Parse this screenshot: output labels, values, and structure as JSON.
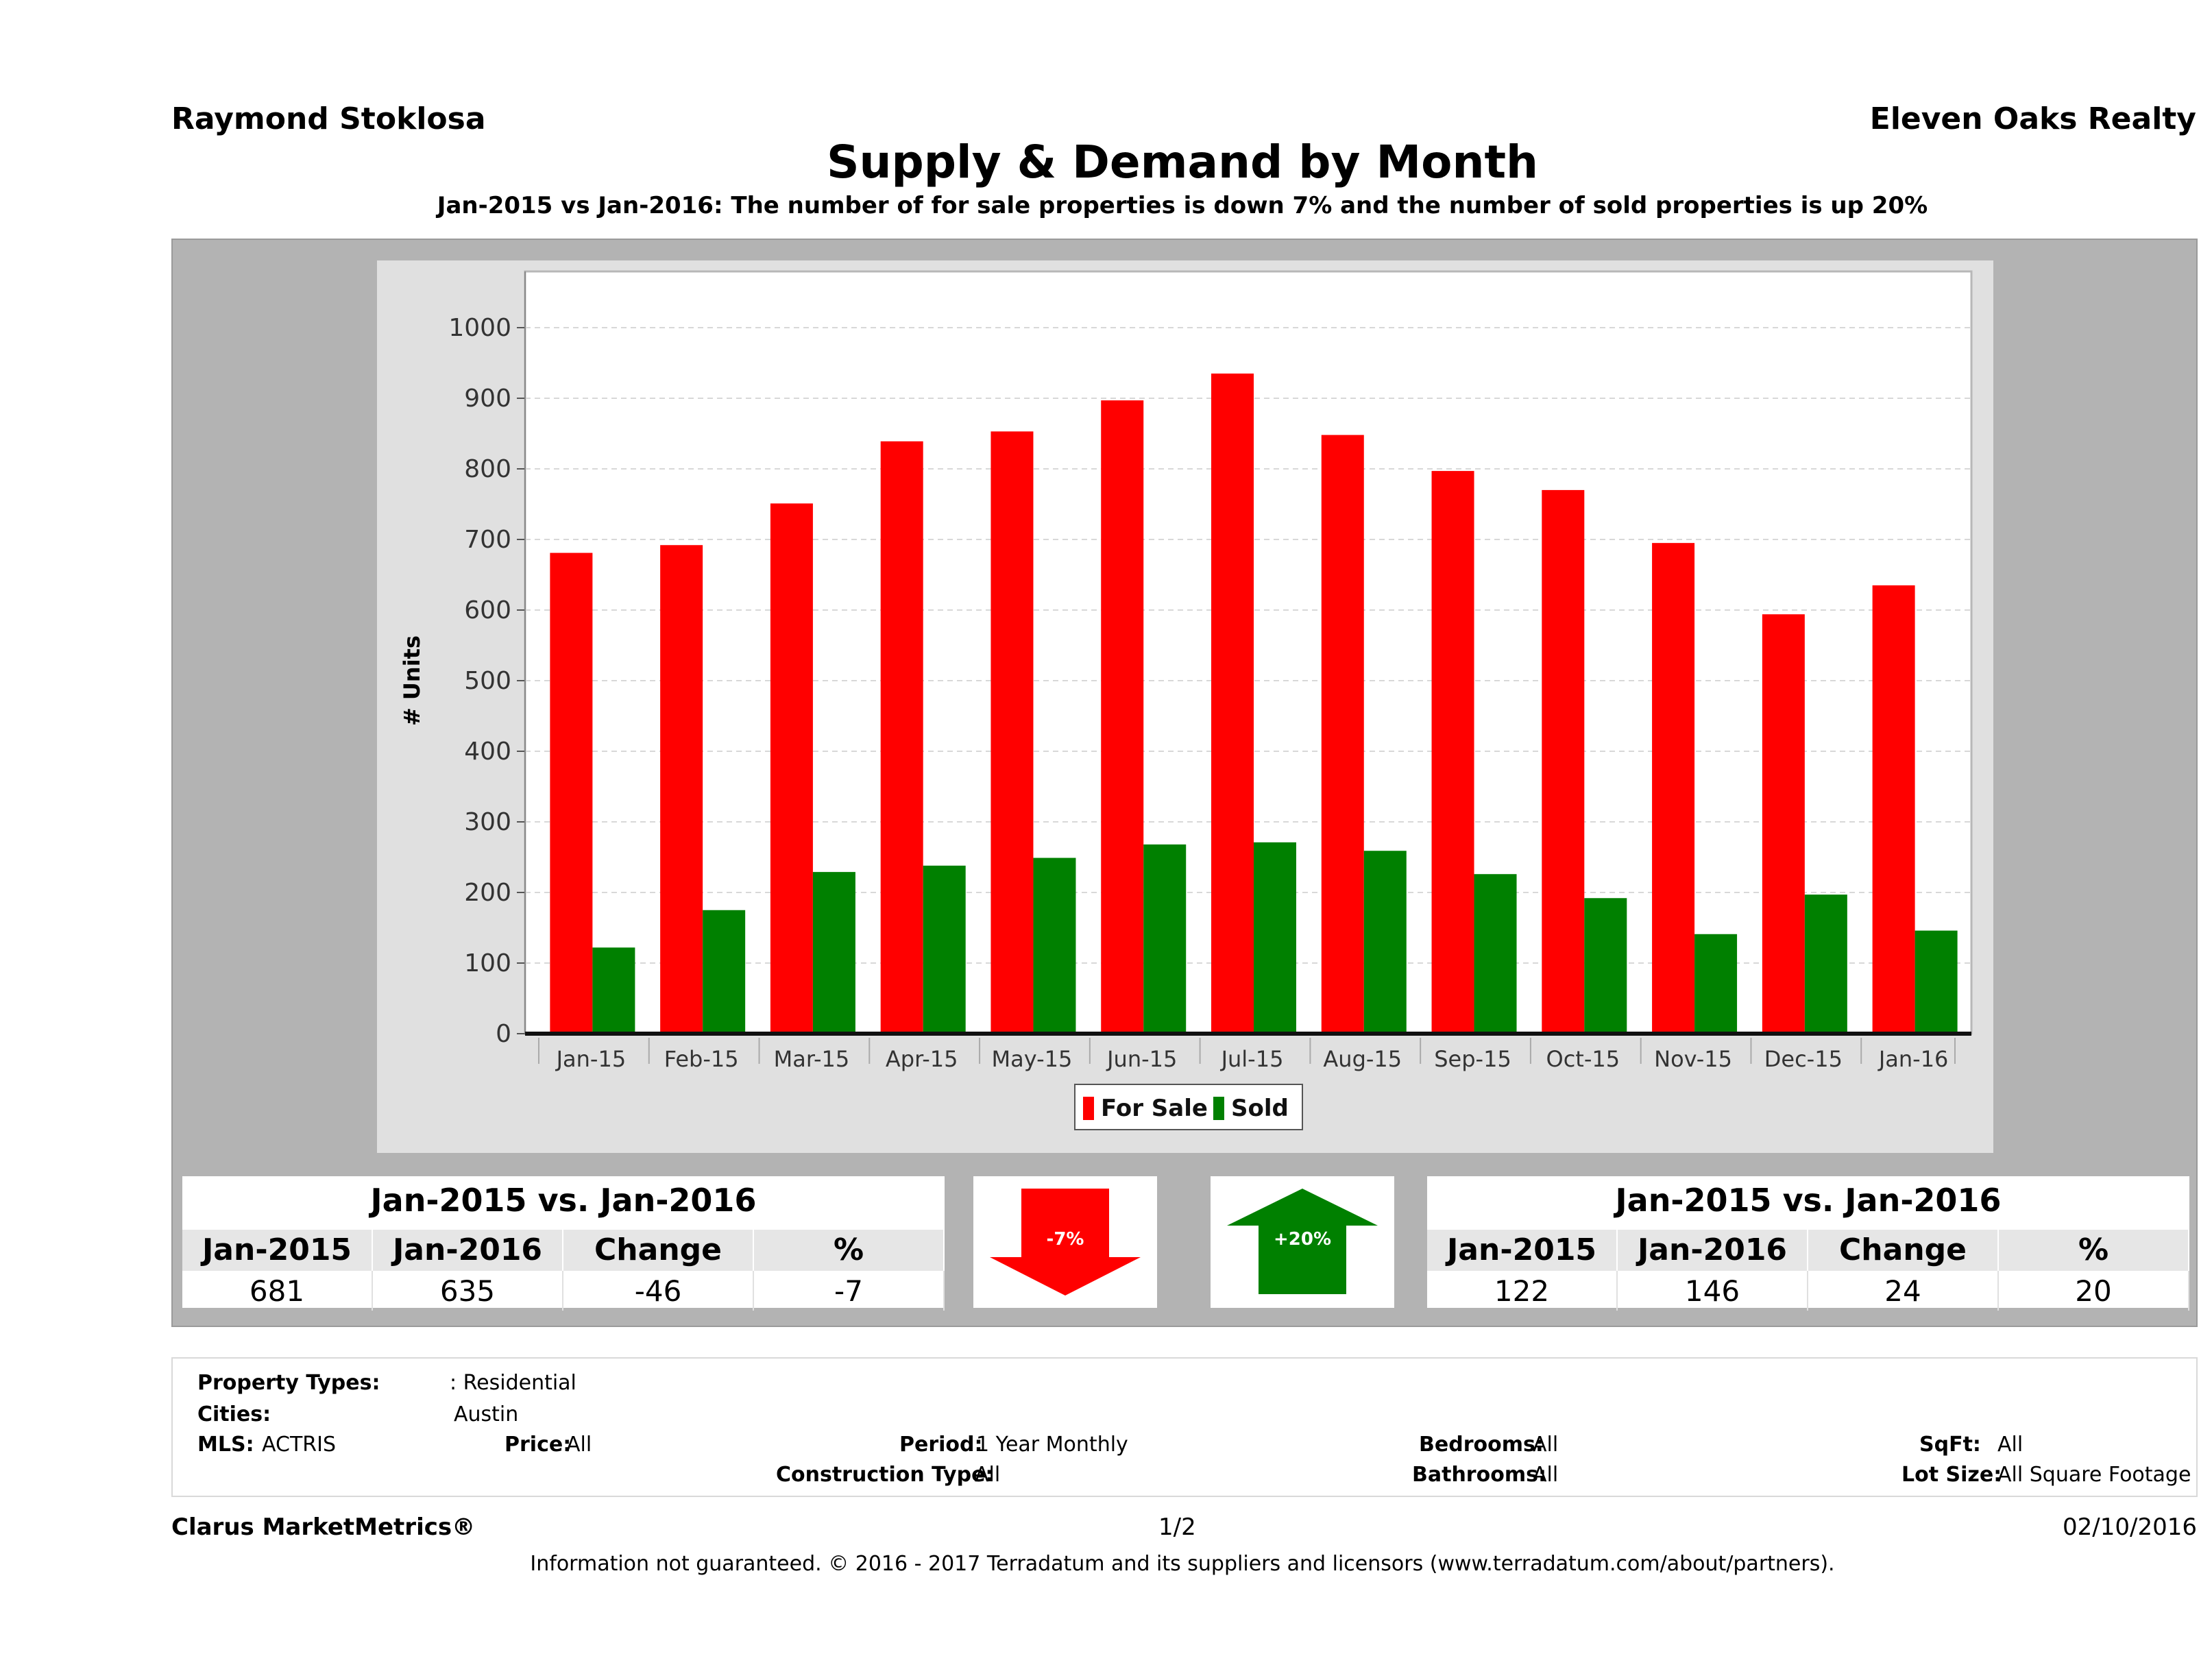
{
  "header": {
    "agent": "Raymond Stoklosa",
    "company": "Eleven Oaks Realty"
  },
  "chart_data": {
    "type": "bar",
    "title": "Supply & Demand by Month",
    "subtitle": "Jan-2015 vs Jan-2016: The number of for sale properties is down 7% and the number of sold properties is up 20%",
    "xlabel": "",
    "ylabel": "# Units",
    "ylim": [
      0,
      1000
    ],
    "yticks": [
      0,
      100,
      200,
      300,
      400,
      500,
      600,
      700,
      800,
      900,
      1000
    ],
    "grid": true,
    "legend_position": "bottom-center",
    "categories": [
      "Jan-15",
      "Feb-15",
      "Mar-15",
      "Apr-15",
      "May-15",
      "Jun-15",
      "Jul-15",
      "Aug-15",
      "Sep-15",
      "Oct-15",
      "Nov-15",
      "Dec-15",
      "Jan-16"
    ],
    "series": [
      {
        "name": "For Sale",
        "color": "#ff0000",
        "values": [
          681,
          692,
          751,
          839,
          853,
          897,
          935,
          848,
          797,
          770,
          695,
          594,
          635
        ]
      },
      {
        "name": "Sold",
        "color": "#008000",
        "values": [
          122,
          175,
          229,
          238,
          249,
          268,
          271,
          259,
          226,
          192,
          141,
          197,
          146
        ]
      }
    ]
  },
  "stats_left": {
    "title": "Jan-2015 vs. Jan-2016",
    "headers": [
      "Jan-2015",
      "Jan-2016",
      "Change",
      "%"
    ],
    "values": [
      "681",
      "635",
      "-46",
      "-7"
    ]
  },
  "stats_right": {
    "title": "Jan-2015 vs. Jan-2016",
    "headers": [
      "Jan-2015",
      "Jan-2016",
      "Change",
      "%"
    ],
    "values": [
      "122",
      "146",
      "24",
      "20"
    ]
  },
  "arrows": {
    "down_label": "-7%",
    "up_label": "+20%",
    "down_color": "#ff0000",
    "up_color": "#008000"
  },
  "criteria": {
    "property_types_label": "Property Types:",
    "property_types_value": ": Residential",
    "cities_label": "Cities:",
    "cities_value": "Austin",
    "mls_label": "MLS:",
    "mls_value": "ACTRIS",
    "price_label": "Price:",
    "price_value": "All",
    "period_label": "Period:",
    "period_value": "1 Year Monthly",
    "construction_label": "Construction Type:",
    "construction_value": "All",
    "bedrooms_label": "Bedrooms:",
    "bedrooms_value": "All",
    "bathrooms_label": "Bathrooms:",
    "bathrooms_value": "All",
    "sqft_label": "SqFt:",
    "sqft_value": "All",
    "lot_label": "Lot Size:",
    "lot_value": "All Square Footage"
  },
  "footer": {
    "brand": "Clarus MarketMetrics®",
    "page": "1/2",
    "date": "02/10/2016",
    "disclaimer": "Information not guaranteed. © 2016 - 2017 Terradatum and its suppliers and licensors (www.terradatum.com/about/partners)."
  }
}
